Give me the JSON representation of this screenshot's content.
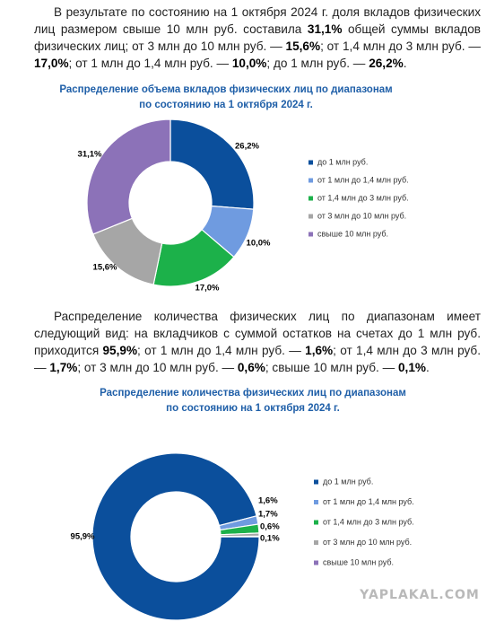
{
  "paragraphs": [
    {
      "runs": [
        {
          "text": "В результате по состоянию на 1 октября 2024 г. доля вкладов физических лиц размером свыше 10 млн руб. составила ",
          "bold": false
        },
        {
          "text": "31,1%",
          "bold": true
        },
        {
          "text": " общей суммы вкладов физических лиц; от 3 млн до 10 млн руб. — ",
          "bold": false
        },
        {
          "text": "15,6%",
          "bold": true
        },
        {
          "text": "; от 1,4 млн до 3 млн руб. — ",
          "bold": false
        },
        {
          "text": "17,0%",
          "bold": true
        },
        {
          "text": "; от 1 млн до 1,4 млн руб. — ",
          "bold": false
        },
        {
          "text": "10,0%",
          "bold": true
        },
        {
          "text": "; до 1 млн руб. — ",
          "bold": false
        },
        {
          "text": "26,2%",
          "bold": true
        },
        {
          "text": ".",
          "bold": false
        }
      ]
    },
    {
      "runs": [
        {
          "text": "Распределение количества физических лиц по диапазонам имеет следующий вид: на вкладчиков с суммой остатков на счетах до 1 млн руб. приходится ",
          "bold": false
        },
        {
          "text": "95,9%",
          "bold": true
        },
        {
          "text": "; от 1 млн до 1,4 млн руб. — ",
          "bold": false
        },
        {
          "text": "1,6%",
          "bold": true
        },
        {
          "text": "; от 1,4 млн до 3 млн руб. — ",
          "bold": false
        },
        {
          "text": "1,7%",
          "bold": true
        },
        {
          "text": "; от 3 млн до 10 млн руб. — ",
          "bold": false
        },
        {
          "text": "0,6%",
          "bold": true
        },
        {
          "text": "; свыше 10 млн руб. — ",
          "bold": false
        },
        {
          "text": "0,1%",
          "bold": true
        },
        {
          "text": ".",
          "bold": false
        }
      ]
    }
  ],
  "chart_data": [
    {
      "type": "donut",
      "title": [
        "Распределение объема вкладов физических лиц по диапазонам",
        "по состоянию на 1 октября 2024 г."
      ],
      "categories": [
        "до 1 млн руб.",
        "от 1 млн до 1,4 млн руб.",
        "от 1,4 млн до 3 млн руб.",
        "от 3 млн до 10 млн руб.",
        "свыше 10 млн руб."
      ],
      "values": [
        26.2,
        10.0,
        17.0,
        15.6,
        31.1
      ],
      "value_labels": [
        "26,2%",
        "10,0%",
        "17,0%",
        "15,6%",
        "31,1%"
      ],
      "colors": [
        "#0b4f9c",
        "#6f9be0",
        "#1cb14a",
        "#a6a6a6",
        "#8c72b8"
      ]
    },
    {
      "type": "donut",
      "title": [
        "Распределение количества физических лиц по диапазонам",
        "по состоянию на 1 октября 2024 г."
      ],
      "categories": [
        "до 1 млн руб.",
        "от 1 млн до 1,4 млн руб.",
        "от 1,4 млн до 3 млн руб.",
        "от 3 млн до 10 млн руб.",
        "свыше 10 млн руб."
      ],
      "values": [
        95.9,
        1.6,
        1.7,
        0.6,
        0.1
      ],
      "value_labels": [
        "95,9%",
        "1,6%",
        "1,7%",
        "0,6%",
        "0,1%"
      ],
      "colors": [
        "#0b4f9c",
        "#6f9be0",
        "#1cb14a",
        "#a6a6a6",
        "#8c72b8"
      ]
    }
  ],
  "watermark": "YAPLAKAL.COM"
}
